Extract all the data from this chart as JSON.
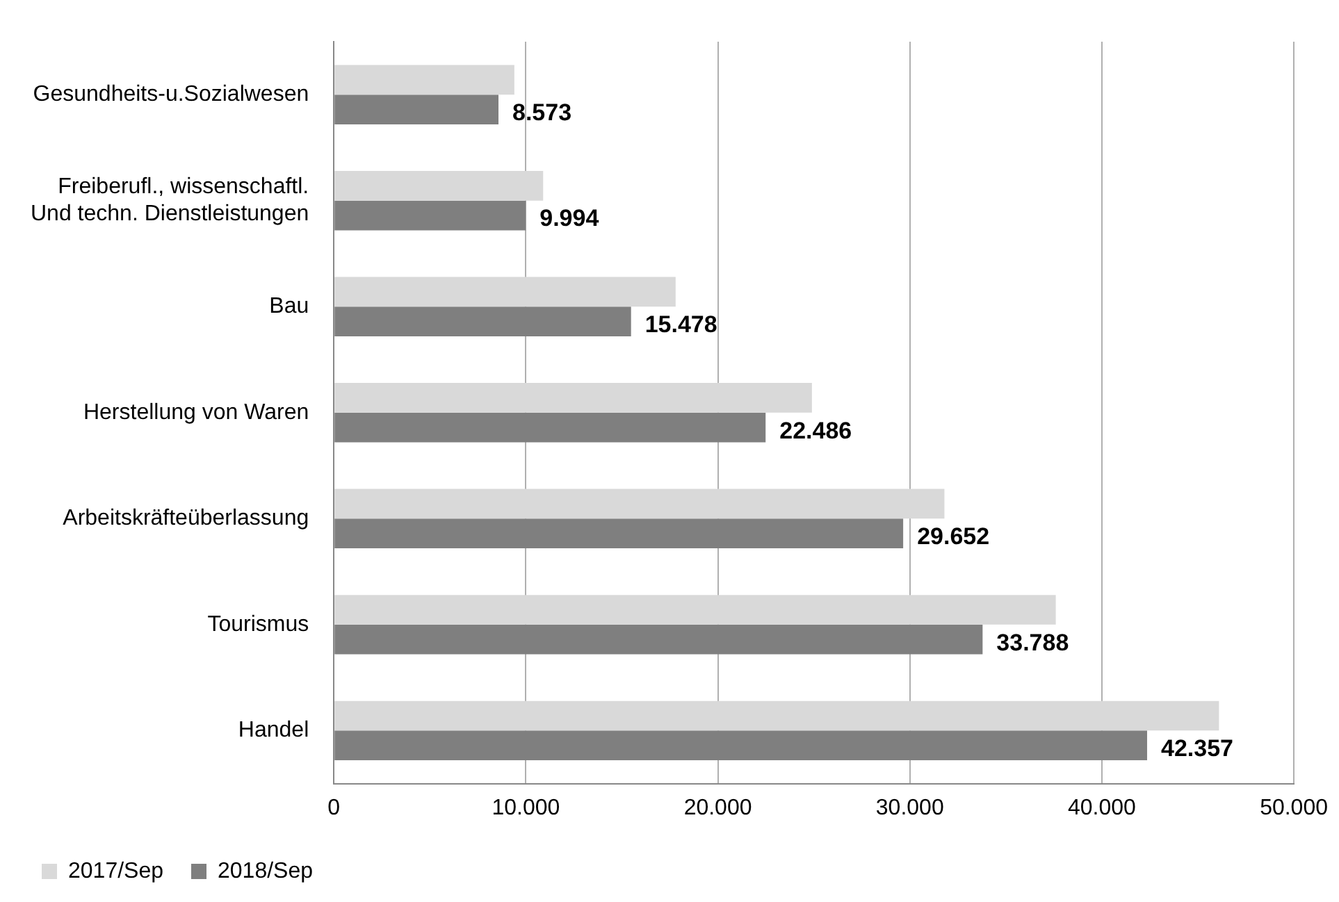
{
  "chart_data": {
    "type": "bar",
    "orientation": "horizontal",
    "categories": [
      "Gesundheits-u.Sozialwesen",
      "Freiberufl., wissenschaftl. Und techn. Dienstleistungen",
      "Bau",
      "Herstellung von Waren",
      "Arbeitskräfteüberlassung",
      "Tourismus",
      "Handel"
    ],
    "series": [
      {
        "name": "2017/Sep",
        "color": "#d9d9d9",
        "values": [
          9400,
          10900,
          17800,
          24900,
          31800,
          37600,
          46100
        ]
      },
      {
        "name": "2018/Sep",
        "color": "#7f7f7f",
        "values": [
          8573,
          9994,
          15478,
          22486,
          29652,
          33788,
          42357
        ],
        "value_labels": [
          "8.573",
          "9.994",
          "15.478",
          "22.486",
          "29.652",
          "33.788",
          "42.357"
        ]
      }
    ],
    "xlim": [
      0,
      50000
    ],
    "xticks": [
      0,
      {
        "value": 10000,
        "label": "10.000"
      },
      {
        "value": 20000,
        "label": "20.000"
      },
      {
        "value": 30000,
        "label": "30.000"
      },
      {
        "value": 40000,
        "label": "40.000"
      },
      {
        "value": 50000,
        "label": "50.000"
      }
    ],
    "grid": "x",
    "legend": "bottom left"
  }
}
